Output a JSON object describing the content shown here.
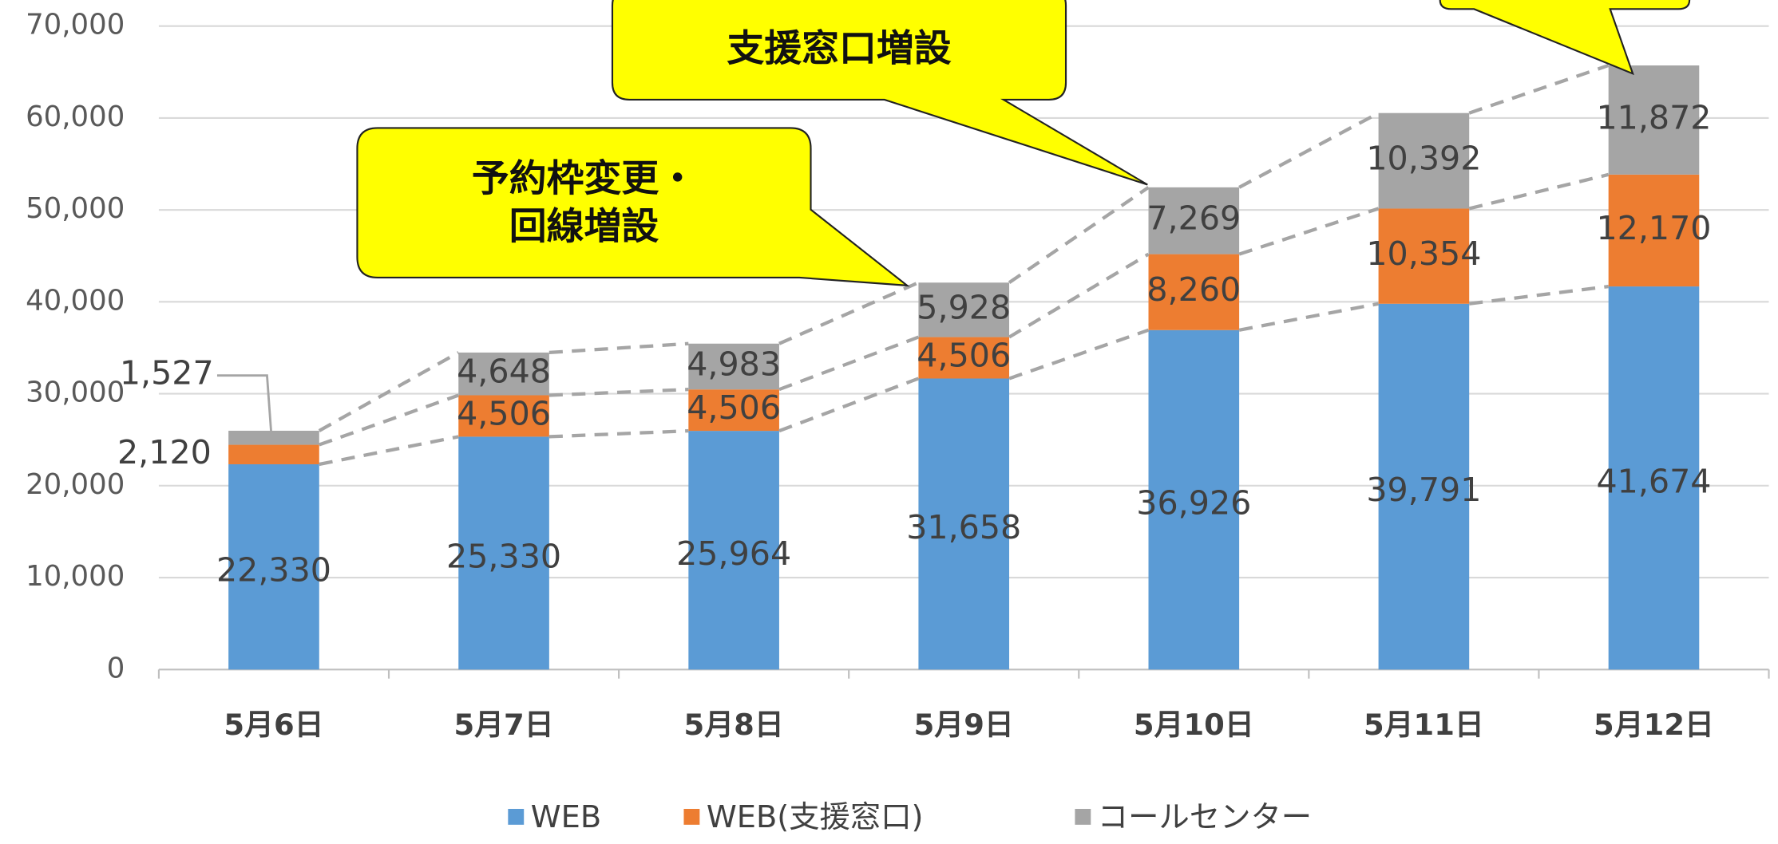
{
  "chart_data": {
    "type": "bar",
    "stacked": true,
    "categories": [
      "5月6日",
      "5月7日",
      "5月8日",
      "5月9日",
      "5月10日",
      "5月11日",
      "5月12日"
    ],
    "series": [
      {
        "name": "WEB",
        "color": "#5b9bd5",
        "values": [
          22330,
          25330,
          25964,
          31658,
          36926,
          39791,
          41674
        ],
        "value_labels": [
          "22,330",
          "25,330",
          "25,964",
          "31,658",
          "36,926",
          "39,791",
          "41,674"
        ]
      },
      {
        "name": "WEB(支援窓口)",
        "color": "#ed7d31",
        "values": [
          2120,
          4506,
          4506,
          4506,
          8260,
          10354,
          12170
        ],
        "value_labels": [
          "2,120",
          "4,506",
          "4,506",
          "4,506",
          "8,260",
          "10,354",
          "12,170"
        ]
      },
      {
        "name": "コールセンター",
        "color": "#a5a5a5",
        "values": [
          1527,
          4648,
          4983,
          5928,
          7269,
          10392,
          11872
        ],
        "value_labels": [
          "1,527",
          "4,648",
          "4,983",
          "5,928",
          "7,269",
          "10,392",
          "11,872"
        ]
      }
    ],
    "ylim": [
      0,
      70000
    ],
    "yticks": [
      0,
      {
        "value": 10000,
        "label": "10,000"
      },
      {
        "value": 20000,
        "label": "20,000"
      },
      {
        "value": 30000,
        "label": "30,000"
      },
      {
        "value": 40000,
        "label": "40,000"
      },
      {
        "value": 50000,
        "label": "50,000"
      },
      {
        "value": 60000,
        "label": "60,000"
      },
      {
        "value": 70000,
        "label": "70,000"
      }
    ],
    "grid": true,
    "legend": "bottom",
    "annotations": [
      [
        "予約枠変更・",
        "回線増設"
      ],
      [
        "支援窓口増設"
      ]
    ]
  }
}
